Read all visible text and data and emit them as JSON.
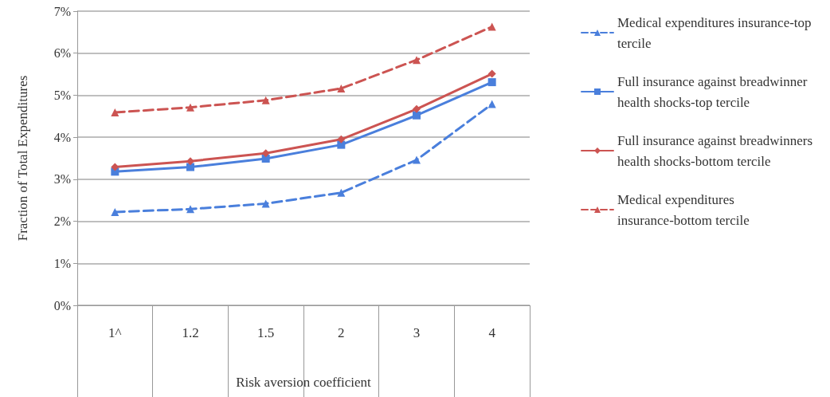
{
  "chart_data": {
    "type": "line",
    "categories": [
      "1^",
      "1.2",
      "1.5",
      "2",
      "3",
      "4"
    ],
    "xlabel": "Risk aversion coefficient",
    "ylabel": "Fraction of Total Expenditures",
    "ylim": [
      0,
      7
    ],
    "yticks": [
      {
        "value": 0,
        "label": "0%"
      },
      {
        "value": 1,
        "label": "1%"
      },
      {
        "value": 2,
        "label": "2%"
      },
      {
        "value": 3,
        "label": "3%"
      },
      {
        "value": 4,
        "label": "4%"
      },
      {
        "value": 5,
        "label": "5%"
      },
      {
        "value": 6,
        "label": "6%"
      },
      {
        "value": 7,
        "label": "7%"
      }
    ],
    "grid": "y",
    "legend": "right",
    "series": [
      {
        "name": "Medical expenditures insurance-top tercile",
        "color": "#4a7fdc",
        "marker": "triangle",
        "line_style": "dashed",
        "values": [
          2.22,
          2.29,
          2.42,
          2.68,
          3.46,
          4.79
        ]
      },
      {
        "name": "Full insurance against breadwinner health shocks-top tercile",
        "color": "#4a7fdc",
        "marker": "square",
        "line_style": "solid",
        "values": [
          3.18,
          3.29,
          3.49,
          3.82,
          4.52,
          5.31
        ]
      },
      {
        "name": "Full insurance against breadwinners health shocks-bottom tercile",
        "color": "#cc5452",
        "marker": "diamond",
        "line_style": "solid",
        "values": [
          3.29,
          3.43,
          3.62,
          3.95,
          4.67,
          5.51
        ]
      },
      {
        "name": "Medical expenditures insurance-bottom tercile",
        "color": "#cc5452",
        "marker": "triangle",
        "line_style": "dashed",
        "values": [
          4.59,
          4.71,
          4.88,
          5.16,
          5.84,
          6.63
        ]
      }
    ]
  }
}
